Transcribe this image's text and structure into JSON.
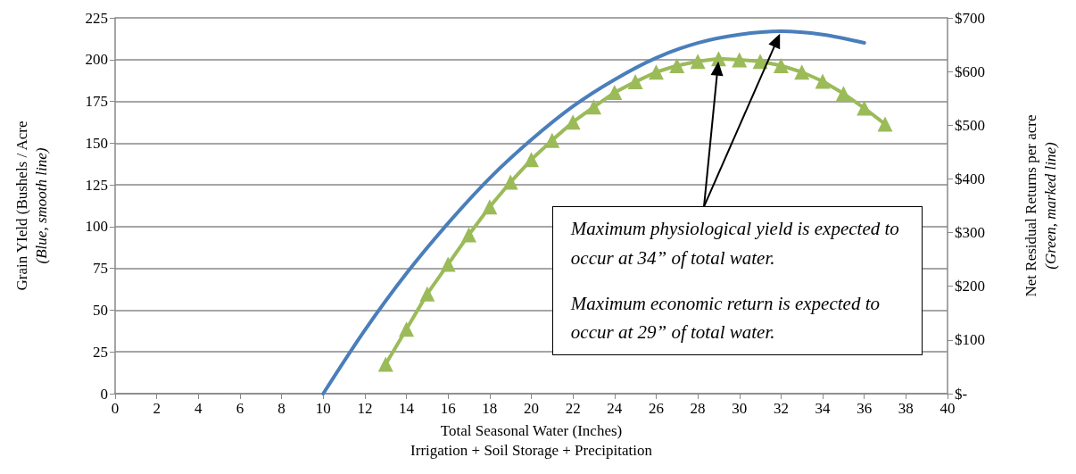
{
  "chart_data": {
    "type": "line",
    "xlabel": "Total Seasonal Water (Inches)\nIrrigation + Soil Storage + Precipitation",
    "ylabel": "Grain YIeld (Bushels / Acre\n(Blue, smooth line)",
    "y2label": "Net Residual Returns per acre\n(Green, marked line)",
    "xlim": [
      0,
      40
    ],
    "xticks": [
      0,
      2,
      4,
      6,
      8,
      10,
      12,
      14,
      16,
      18,
      20,
      22,
      24,
      26,
      28,
      30,
      32,
      34,
      36,
      38,
      40
    ],
    "ylim": [
      0,
      225
    ],
    "yticks": [
      0,
      25,
      50,
      75,
      100,
      125,
      150,
      175,
      200,
      225
    ],
    "y2lim": [
      0,
      700
    ],
    "y2ticks": [
      {
        "value": 0,
        "label": "$-"
      },
      {
        "value": 100,
        "label": "$100"
      },
      {
        "value": 200,
        "label": "$200"
      },
      {
        "value": 300,
        "label": "$300"
      },
      {
        "value": 400,
        "label": "$400"
      },
      {
        "value": 500,
        "label": "$500"
      },
      {
        "value": 600,
        "label": "$600"
      },
      {
        "value": 700,
        "label": "$700"
      }
    ],
    "grid": "y",
    "series": [
      {
        "color": "#4a7ebb",
        "marker": "none",
        "x": [
          10,
          12,
          14,
          16,
          18,
          20,
          22,
          24,
          26,
          28,
          30,
          32,
          34,
          36
        ],
        "values": [
          0,
          38,
          72,
          102,
          129,
          152,
          172,
          188,
          201,
          210,
          215,
          217,
          215,
          210
        ]
      },
      {
        "color": "#9bbb59",
        "marker": "triangle",
        "axis": "y2",
        "x": [
          13,
          14,
          15,
          16,
          17,
          18,
          19,
          20,
          21,
          22,
          23,
          24,
          25,
          26,
          27,
          28,
          29,
          30,
          31,
          32,
          33,
          34,
          35,
          36,
          37
        ],
        "values": [
          55,
          120,
          186,
          241,
          296,
          348,
          394,
          436,
          472,
          506,
          534,
          561,
          581,
          599,
          611,
          619,
          624,
          622,
          619,
          611,
          599,
          582,
          559,
          532,
          502
        ]
      }
    ],
    "annotations": [
      "Maximum physiological yield is expected to occur at 34” of total water.",
      "Maximum economic return is expected to occur at 29” of total water."
    ]
  }
}
